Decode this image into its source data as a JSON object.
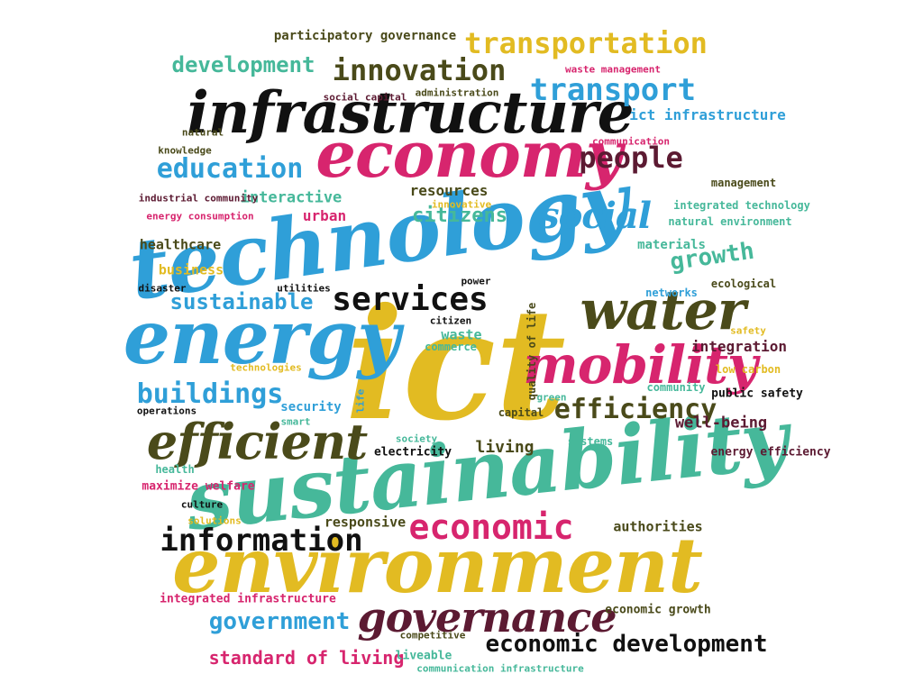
{
  "words": {
    "technology": "technology",
    "ict": "ict",
    "sustainability": "sustainability",
    "environment": "environment",
    "energy": "energy",
    "economy": "economy",
    "infrastructure": "infrastructure",
    "mobility": "mobility",
    "water": "water",
    "efficient": "efficient",
    "services": "services",
    "social": "social",
    "economic": "economic",
    "information": "information",
    "governance": "governance",
    "buildings": "buildings",
    "transport": "transport",
    "transportation": "transportation",
    "innovation": "innovation",
    "education": "education",
    "people": "people",
    "efficiency": "efficiency",
    "sustainable": "sustainable",
    "citizens": "citizens",
    "growth": "growth",
    "development": "development",
    "government": "government",
    "economic_development": "economic development",
    "standard_of_living": "standard of living",
    "integrated_infrastructure": "integrated infrastructure",
    "participatory_governance": "participatory governance",
    "ict_infrastructure": "ict infrastructure",
    "living": "living",
    "interactive": "interactive",
    "resources": "resources",
    "urban": "urban",
    "healthcare": "healthcare",
    "business": "business",
    "energy_consumption": "energy consumption",
    "industrial_community": "industrial community",
    "integration": "integration",
    "well_being": "well-being",
    "waste": "waste",
    "security": "security",
    "responsive": "responsive",
    "authorities": "authorities",
    "liveable": "liveable",
    "communication_infrastructure": "communication infrastructure",
    "economic_growth": "economic growth",
    "public_safety": "public safety",
    "energy_efficiency": "energy efficiency",
    "low_carbon": "low carbon",
    "materials": "materials",
    "integrated_technology": "integrated technology",
    "natural_environment": "natural environment",
    "management": "management",
    "ecological": "ecological",
    "networks": "networks",
    "commerce": "commerce",
    "capital": "capital",
    "community": "community",
    "quality_of_life": "quality of life",
    "electricity": "electricity",
    "systems": "systems",
    "society": "society",
    "green": "green",
    "health": "health",
    "maximize_welfare": "maximize welfare",
    "culture": "culture",
    "solutions": "solutions",
    "operations": "operations",
    "smart": "smart",
    "technologies": "technologies",
    "disaster": "disaster",
    "utilities": "utilities",
    "power": "power",
    "citizen": "citizen",
    "knowledge": "knowledge",
    "communication": "communication",
    "natural": "natural",
    "administration": "administration",
    "social_capital": "social capital",
    "waste_management": "waste management",
    "competitive": "competitive",
    "safety": "safety",
    "innovative": "innovative",
    "life": "life"
  }
}
